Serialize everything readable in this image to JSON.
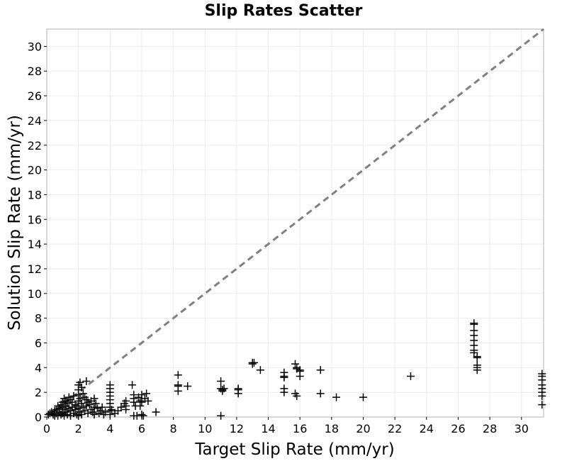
{
  "chart_data": {
    "type": "scatter",
    "title": "Slip Rates Scatter",
    "xlabel": "Target Slip Rate (mm/yr)",
    "ylabel": "Solution Slip Rate (mm/yr)",
    "xlim": [
      0,
      31.4
    ],
    "ylim": [
      0,
      31.4
    ],
    "x_ticks": [
      0,
      2,
      4,
      6,
      8,
      10,
      12,
      14,
      16,
      18,
      20,
      22,
      24,
      26,
      28,
      30
    ],
    "y_ticks": [
      0,
      2,
      4,
      6,
      8,
      10,
      12,
      14,
      16,
      18,
      20,
      22,
      24,
      26,
      28,
      30
    ],
    "grid": true,
    "reference_line": {
      "style": "dashed",
      "color": "#808080",
      "from": [
        0,
        0
      ],
      "to": [
        31.4,
        31.4
      ]
    },
    "series": [
      {
        "marker": "plus",
        "color": "#000000",
        "points": [
          [
            0.1,
            0.2
          ],
          [
            0.2,
            0.3
          ],
          [
            0.3,
            0.4
          ],
          [
            0.4,
            0.2
          ],
          [
            0.5,
            0.5
          ],
          [
            0.5,
            0.1
          ],
          [
            0.6,
            0.6
          ],
          [
            0.6,
            0.3
          ],
          [
            0.7,
            0.9
          ],
          [
            0.7,
            0.1
          ],
          [
            0.8,
            0.7
          ],
          [
            0.8,
            0.4
          ],
          [
            0.9,
            1.0
          ],
          [
            0.9,
            0.2
          ],
          [
            1.0,
            1.2
          ],
          [
            1.0,
            0.8
          ],
          [
            1.0,
            0.3
          ],
          [
            1.1,
            1.5
          ],
          [
            1.1,
            0.6
          ],
          [
            1.1,
            0.1
          ],
          [
            1.2,
            1.3
          ],
          [
            1.2,
            0.9
          ],
          [
            1.2,
            0.4
          ],
          [
            1.3,
            1.1
          ],
          [
            1.3,
            0.2
          ],
          [
            1.4,
            1.6
          ],
          [
            1.4,
            0.7
          ],
          [
            1.5,
            1.4
          ],
          [
            1.5,
            0.5
          ],
          [
            1.5,
            0.1
          ],
          [
            1.6,
            1.2
          ],
          [
            1.6,
            0.8
          ],
          [
            1.7,
            1.7
          ],
          [
            1.7,
            0.3
          ],
          [
            1.8,
            1.0
          ],
          [
            1.8,
            0.6
          ],
          [
            1.9,
            0.9
          ],
          [
            1.9,
            0.2
          ],
          [
            2.0,
            2.6
          ],
          [
            2.0,
            2.2
          ],
          [
            2.0,
            1.8
          ],
          [
            2.0,
            1.3
          ],
          [
            2.0,
            0.7
          ],
          [
            2.0,
            0.1
          ],
          [
            2.1,
            2.8
          ],
          [
            2.1,
            1.5
          ],
          [
            2.1,
            0.4
          ],
          [
            2.2,
            2.4
          ],
          [
            2.2,
            1.1
          ],
          [
            2.2,
            0.2
          ],
          [
            2.3,
            1.9
          ],
          [
            2.3,
            0.8
          ],
          [
            2.4,
            1.6
          ],
          [
            2.4,
            0.5
          ],
          [
            2.5,
            2.9
          ],
          [
            2.5,
            1.4
          ],
          [
            2.5,
            0.9
          ],
          [
            2.6,
            1.2
          ],
          [
            2.6,
            0.3
          ],
          [
            2.7,
            1.0
          ],
          [
            2.8,
            0.6
          ],
          [
            2.8,
            1.3
          ],
          [
            2.9,
            0.4
          ],
          [
            3.0,
            1.5
          ],
          [
            3.0,
            0.8
          ],
          [
            3.0,
            0.2
          ],
          [
            3.1,
            1.1
          ],
          [
            3.2,
            0.7
          ],
          [
            3.3,
            0.3
          ],
          [
            3.4,
            0.5
          ],
          [
            3.5,
            0.8
          ],
          [
            3.6,
            0.2
          ],
          [
            3.7,
            0.4
          ],
          [
            4.0,
            2.6
          ],
          [
            4.0,
            2.3
          ],
          [
            4.0,
            2.0
          ],
          [
            4.0,
            1.7
          ],
          [
            4.0,
            1.4
          ],
          [
            4.0,
            1.1
          ],
          [
            4.0,
            0.8
          ],
          [
            4.0,
            0.5
          ],
          [
            4.0,
            0.2
          ],
          [
            4.1,
            0.6
          ],
          [
            4.3,
            0.3
          ],
          [
            4.5,
            0.5
          ],
          [
            4.7,
            0.8
          ],
          [
            4.9,
            1.1
          ],
          [
            5.0,
            0.6
          ],
          [
            5.0,
            1.3
          ],
          [
            5.0,
            0.9
          ],
          [
            5.4,
            2.6
          ],
          [
            5.5,
            1.8
          ],
          [
            5.5,
            1.5
          ],
          [
            5.5,
            1.2
          ],
          [
            5.6,
            0.9
          ],
          [
            5.5,
            0.1
          ],
          [
            5.7,
            0.1
          ],
          [
            5.8,
            1.6
          ],
          [
            5.9,
            1.3
          ],
          [
            5.9,
            0.9
          ],
          [
            6.0,
            1.8
          ],
          [
            6.0,
            1.2
          ],
          [
            6.0,
            0.2
          ],
          [
            6.1,
            0.1
          ],
          [
            6.2,
            1.5
          ],
          [
            6.3,
            1.9
          ],
          [
            6.4,
            1.3
          ],
          [
            6.9,
            0.4
          ],
          [
            8.3,
            3.4
          ],
          [
            8.3,
            2.6
          ],
          [
            8.3,
            2.5
          ],
          [
            8.3,
            2.1
          ],
          [
            8.9,
            2.5
          ],
          [
            11.0,
            2.9
          ],
          [
            11.0,
            2.3
          ],
          [
            11.1,
            2.1
          ],
          [
            11.1,
            2.2
          ],
          [
            11.2,
            2.3
          ],
          [
            11.0,
            0.1
          ],
          [
            12.1,
            2.3
          ],
          [
            12.1,
            2.2
          ],
          [
            12.1,
            1.9
          ],
          [
            13.0,
            4.4
          ],
          [
            13.0,
            4.3
          ],
          [
            13.1,
            4.4
          ],
          [
            13.5,
            3.8
          ],
          [
            15.0,
            3.6
          ],
          [
            15.0,
            3.3
          ],
          [
            15.0,
            3.2
          ],
          [
            15.0,
            2.3
          ],
          [
            15.0,
            2.0
          ],
          [
            15.7,
            4.3
          ],
          [
            15.8,
            4.0
          ],
          [
            15.8,
            3.9
          ],
          [
            16.0,
            3.8
          ],
          [
            16.0,
            3.7
          ],
          [
            16.0,
            3.3
          ],
          [
            15.7,
            1.9
          ],
          [
            15.8,
            1.7
          ],
          [
            17.3,
            3.8
          ],
          [
            17.3,
            1.9
          ],
          [
            18.3,
            1.6
          ],
          [
            20.0,
            1.6
          ],
          [
            23.0,
            3.3
          ],
          [
            27.0,
            7.6
          ],
          [
            27.0,
            7.5
          ],
          [
            27.0,
            7.0
          ],
          [
            27.0,
            6.6
          ],
          [
            27.0,
            6.2
          ],
          [
            27.0,
            5.8
          ],
          [
            27.0,
            5.4
          ],
          [
            27.0,
            5.2
          ],
          [
            27.2,
            4.9
          ],
          [
            27.2,
            4.8
          ],
          [
            27.2,
            4.2
          ],
          [
            27.2,
            4.0
          ],
          [
            27.2,
            3.8
          ],
          [
            31.3,
            3.5
          ],
          [
            31.3,
            3.3
          ],
          [
            31.3,
            3.0
          ],
          [
            31.3,
            2.6
          ],
          [
            31.3,
            2.3
          ],
          [
            31.3,
            2.0
          ],
          [
            31.3,
            1.7
          ],
          [
            31.3,
            1.0
          ]
        ]
      }
    ]
  }
}
